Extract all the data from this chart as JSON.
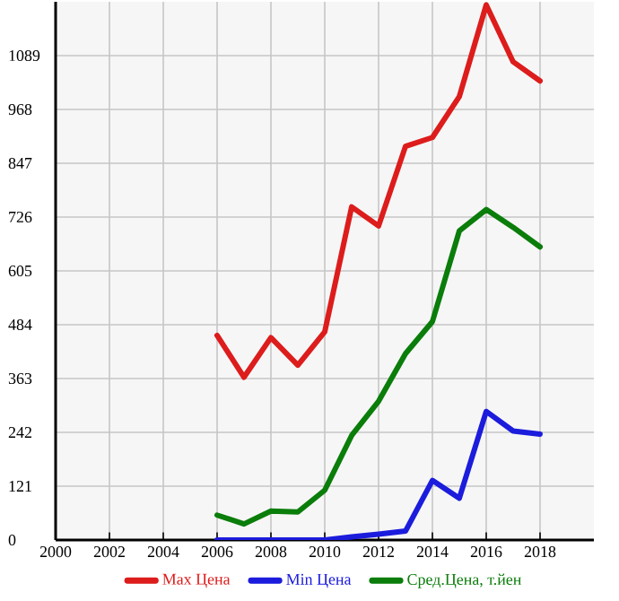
{
  "chart_data": {
    "type": "line",
    "x": [
      2006,
      2007,
      2008,
      2009,
      2010,
      2011,
      2012,
      2013,
      2014,
      2015,
      2016,
      2017,
      2018
    ],
    "xlim": [
      2000,
      2020
    ],
    "xticks": [
      2000,
      2002,
      2004,
      2006,
      2008,
      2010,
      2012,
      2014,
      2016,
      2018
    ],
    "ylim": [
      0,
      1210
    ],
    "yticks": [
      0,
      121,
      242,
      363,
      484,
      605,
      726,
      847,
      968,
      1089
    ],
    "grid": true,
    "legend": "bottom",
    "marker": "none",
    "line_style": "solid",
    "series": [
      {
        "name": "Max Цена",
        "color": "#dd1c1c",
        "values": [
          460,
          366,
          455,
          393,
          468,
          749,
          706,
          885,
          905,
          997,
          1203,
          1075,
          1032
        ]
      },
      {
        "name": "Min Цена",
        "color": "#1c1cdd",
        "values": [
          0,
          0,
          0,
          0,
          0,
          7,
          13,
          20,
          134,
          94,
          289,
          245,
          238
        ]
      },
      {
        "name": "Сред.Цена, т.йен",
        "color": "#0a7d0a",
        "values": [
          56,
          36,
          65,
          63,
          112,
          235,
          312,
          419,
          491,
          695,
          743,
          703,
          659
        ]
      }
    ]
  }
}
